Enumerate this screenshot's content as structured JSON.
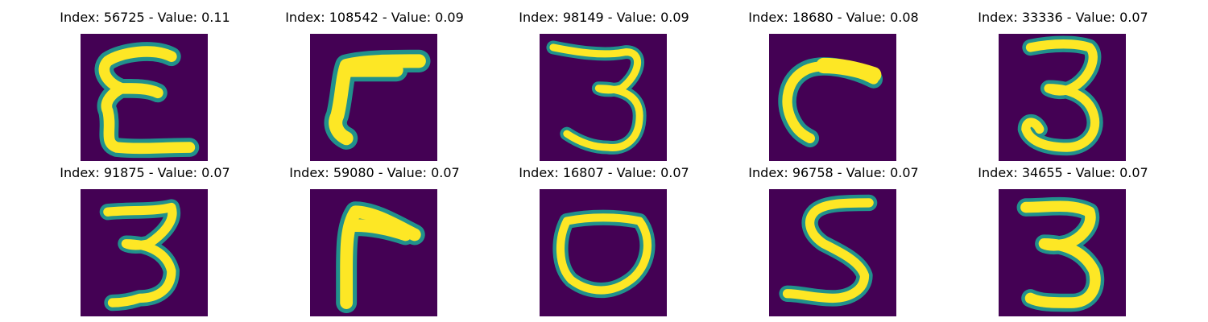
{
  "figure": {
    "colors": {
      "background": "#440154",
      "mid": "#21918c",
      "high": "#fde725"
    },
    "panels": [
      {
        "title": "Index: 56725 - Value: 0.11",
        "icon": "handwritten-digit-3-mirrored"
      },
      {
        "title": "Index: 108542 - Value: 0.09",
        "icon": "handwritten-digit-7-mirrored"
      },
      {
        "title": "Index: 98149 - Value: 0.09",
        "icon": "handwritten-digit-3"
      },
      {
        "title": "Index: 18680 - Value: 0.08",
        "icon": "handwritten-digit-c-stroke"
      },
      {
        "title": "Index: 33336 - Value: 0.07",
        "icon": "handwritten-digit-3"
      },
      {
        "title": "Index: 91875 - Value: 0.07",
        "icon": "handwritten-digit-3"
      },
      {
        "title": "Index: 59080 - Value: 0.07",
        "icon": "handwritten-digit-7-mirrored"
      },
      {
        "title": "Index: 16807 - Value: 0.07",
        "icon": "handwritten-digit-0"
      },
      {
        "title": "Index: 96758 - Value: 0.07",
        "icon": "handwritten-digit-5"
      },
      {
        "title": "Index: 34655 - Value: 0.07",
        "icon": "handwritten-digit-3"
      }
    ]
  }
}
